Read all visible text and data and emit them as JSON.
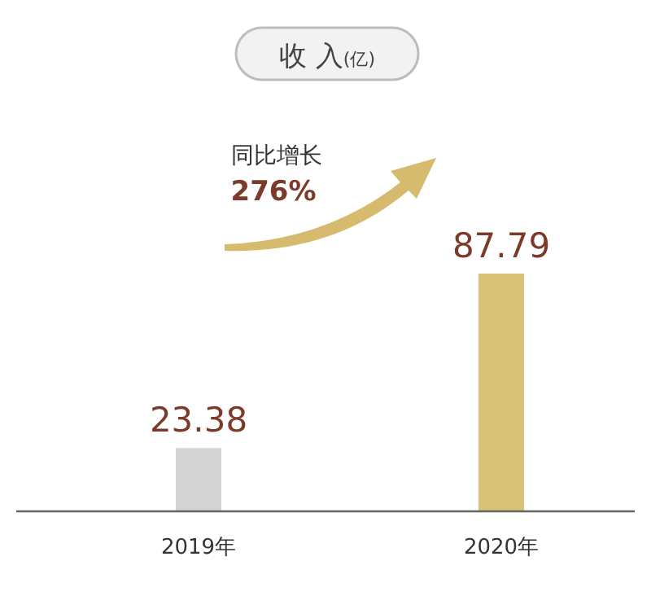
{
  "chart_data": {
    "type": "bar",
    "title": "收 入$_{(亿)}$",
    "categories": [
      "2019年",
      "2020年"
    ],
    "values": [
      23.38,
      87.79
    ],
    "colors": [
      "#d4d4d4",
      "#d8c277"
    ],
    "data_labels": true,
    "annotations": [
      "同比增长",
      "276%"
    ]
  }
}
